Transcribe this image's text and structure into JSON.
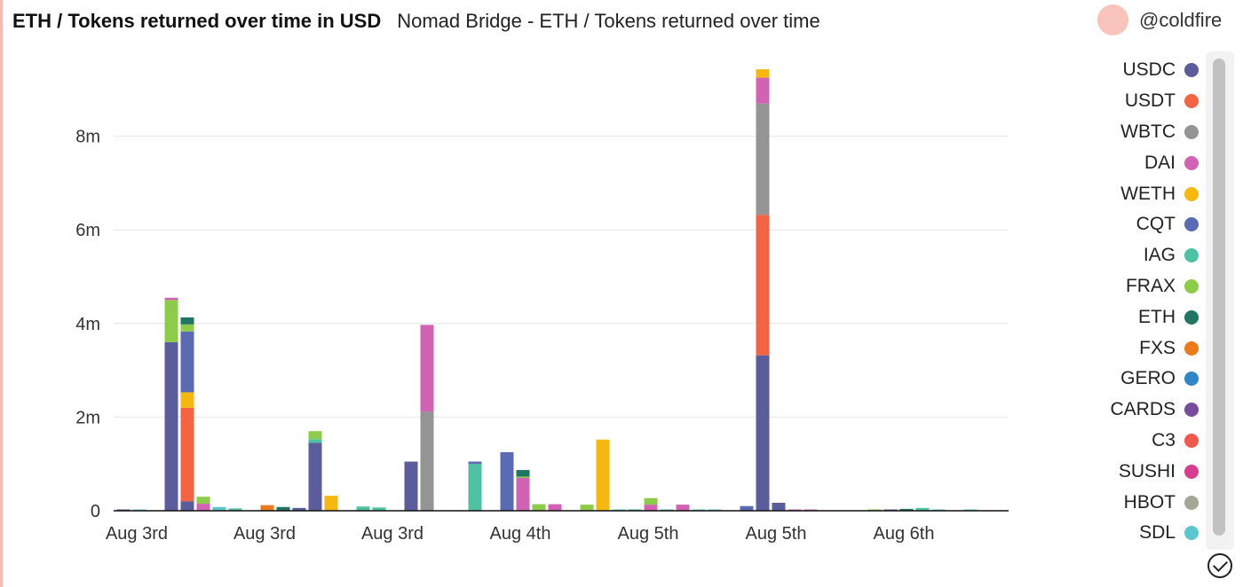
{
  "header": {
    "title": "ETH / Tokens returned over time in USD",
    "subtitle": "Nomad Bridge - ETH / Tokens returned over time",
    "author": "@coldfire"
  },
  "chart_data": {
    "type": "bar",
    "stacked": true,
    "ylim": [
      0,
      10000000
    ],
    "yticks": [
      0,
      2000000,
      4000000,
      6000000,
      8000000
    ],
    "ytick_labels": [
      "0",
      "2m",
      "4m",
      "6m",
      "8m"
    ],
    "grid": true,
    "legend_position": "right",
    "xtick_labels": [
      {
        "label": "Aug 3rd",
        "at": 1
      },
      {
        "label": "Aug 3rd",
        "at": 9
      },
      {
        "label": "Aug 3rd",
        "at": 17
      },
      {
        "label": "Aug 4th",
        "at": 25
      },
      {
        "label": "Aug 5th",
        "at": 33
      },
      {
        "label": "Aug 5th",
        "at": 41
      },
      {
        "label": "Aug 6th",
        "at": 49
      }
    ],
    "num_buckets": 56,
    "series": [
      {
        "name": "USDC",
        "color": "#5a5c9c"
      },
      {
        "name": "USDT",
        "color": "#f26444"
      },
      {
        "name": "WBTC",
        "color": "#949494"
      },
      {
        "name": "DAI",
        "color": "#d162b4"
      },
      {
        "name": "WETH",
        "color": "#f5b710"
      },
      {
        "name": "CQT",
        "color": "#5a6bb4"
      },
      {
        "name": "IAG",
        "color": "#4dc1a2"
      },
      {
        "name": "FRAX",
        "color": "#8dcb4b"
      },
      {
        "name": "ETH",
        "color": "#217663"
      },
      {
        "name": "FXS",
        "color": "#ea7c1d"
      },
      {
        "name": "GERO",
        "color": "#2f86c6"
      },
      {
        "name": "CARDS",
        "color": "#784d9b"
      },
      {
        "name": "C3",
        "color": "#ef5a4f"
      },
      {
        "name": "SUSHI",
        "color": "#d53e8e"
      },
      {
        "name": "HBOT",
        "color": "#a4a795"
      },
      {
        "name": "SDL",
        "color": "#5cc6cd"
      }
    ],
    "bars": [
      {
        "x": 0,
        "segments": [
          [
            "USDC",
            15000
          ]
        ]
      },
      {
        "x": 1,
        "segments": [
          [
            "SDL",
            10000
          ]
        ]
      },
      {
        "x": 3,
        "segments": [
          [
            "USDC",
            3600000
          ],
          [
            "FRAX",
            900000
          ],
          [
            "DAI",
            50000
          ]
        ]
      },
      {
        "x": 4,
        "segments": [
          [
            "USDC",
            200000
          ],
          [
            "USDT",
            2000000
          ],
          [
            "WETH",
            330000
          ],
          [
            "CQT",
            1300000
          ],
          [
            "FRAX",
            150000
          ],
          [
            "ETH",
            150000
          ]
        ]
      },
      {
        "x": 5,
        "segments": [
          [
            "DAI",
            150000
          ],
          [
            "FRAX",
            150000
          ]
        ]
      },
      {
        "x": 6,
        "segments": [
          [
            "SDL",
            80000
          ]
        ]
      },
      {
        "x": 7,
        "segments": [
          [
            "IAG",
            50000
          ]
        ]
      },
      {
        "x": 9,
        "segments": [
          [
            "FXS",
            120000
          ]
        ]
      },
      {
        "x": 10,
        "segments": [
          [
            "ETH",
            80000
          ]
        ]
      },
      {
        "x": 11,
        "segments": [
          [
            "USDC",
            60000
          ]
        ]
      },
      {
        "x": 12,
        "segments": [
          [
            "USDC",
            1450000
          ],
          [
            "IAG",
            80000
          ],
          [
            "FRAX",
            170000
          ]
        ]
      },
      {
        "x": 13,
        "segments": [
          [
            "WETH",
            320000
          ]
        ]
      },
      {
        "x": 15,
        "segments": [
          [
            "IAG",
            90000
          ]
        ]
      },
      {
        "x": 16,
        "segments": [
          [
            "IAG",
            70000
          ]
        ]
      },
      {
        "x": 18,
        "segments": [
          [
            "USDC",
            1050000
          ]
        ]
      },
      {
        "x": 19,
        "segments": [
          [
            "WBTC",
            2120000
          ],
          [
            "DAI",
            1850000
          ]
        ]
      },
      {
        "x": 22,
        "segments": [
          [
            "IAG",
            1000000
          ],
          [
            "CQT",
            50000
          ]
        ]
      },
      {
        "x": 24,
        "segments": [
          [
            "CQT",
            1250000
          ]
        ]
      },
      {
        "x": 25,
        "segments": [
          [
            "DAI",
            700000
          ],
          [
            "FRAX",
            30000
          ],
          [
            "ETH",
            140000
          ]
        ]
      },
      {
        "x": 26,
        "segments": [
          [
            "FRAX",
            140000
          ]
        ]
      },
      {
        "x": 27,
        "segments": [
          [
            "DAI",
            140000
          ]
        ]
      },
      {
        "x": 29,
        "segments": [
          [
            "FRAX",
            130000
          ]
        ]
      },
      {
        "x": 30,
        "segments": [
          [
            "WETH",
            1520000
          ]
        ]
      },
      {
        "x": 31,
        "segments": [
          [
            "SDL",
            20000
          ]
        ]
      },
      {
        "x": 32,
        "segments": [
          [
            "IAG",
            30000
          ]
        ]
      },
      {
        "x": 33,
        "segments": [
          [
            "DAI",
            130000
          ],
          [
            "FRAX",
            140000
          ]
        ]
      },
      {
        "x": 34,
        "segments": [
          [
            "IAG",
            20000
          ]
        ]
      },
      {
        "x": 35,
        "segments": [
          [
            "DAI",
            130000
          ]
        ]
      },
      {
        "x": 36,
        "segments": [
          [
            "SDL",
            15000
          ]
        ]
      },
      {
        "x": 37,
        "segments": [
          [
            "SDL",
            10000
          ]
        ]
      },
      {
        "x": 39,
        "segments": [
          [
            "CQT",
            100000
          ]
        ]
      },
      {
        "x": 40,
        "segments": [
          [
            "USDC",
            3320000
          ],
          [
            "USDT",
            3000000
          ],
          [
            "WBTC",
            2380000
          ],
          [
            "DAI",
            550000
          ],
          [
            "WETH",
            180000
          ]
        ]
      },
      {
        "x": 41,
        "segments": [
          [
            "USDC",
            170000
          ]
        ]
      },
      {
        "x": 42,
        "segments": [
          [
            "DAI",
            20000
          ]
        ]
      },
      {
        "x": 43,
        "segments": [
          [
            "DAI",
            10000
          ]
        ]
      },
      {
        "x": 47,
        "segments": [
          [
            "FRAX",
            15000
          ]
        ]
      },
      {
        "x": 48,
        "segments": [
          [
            "USDC",
            10000
          ]
        ]
      },
      {
        "x": 49,
        "segments": [
          [
            "ETH",
            40000
          ]
        ]
      },
      {
        "x": 50,
        "segments": [
          [
            "IAG",
            60000
          ]
        ]
      },
      {
        "x": 51,
        "segments": [
          [
            "SDL",
            20000
          ]
        ]
      },
      {
        "x": 53,
        "segments": [
          [
            "SDL",
            10000
          ]
        ]
      }
    ]
  }
}
